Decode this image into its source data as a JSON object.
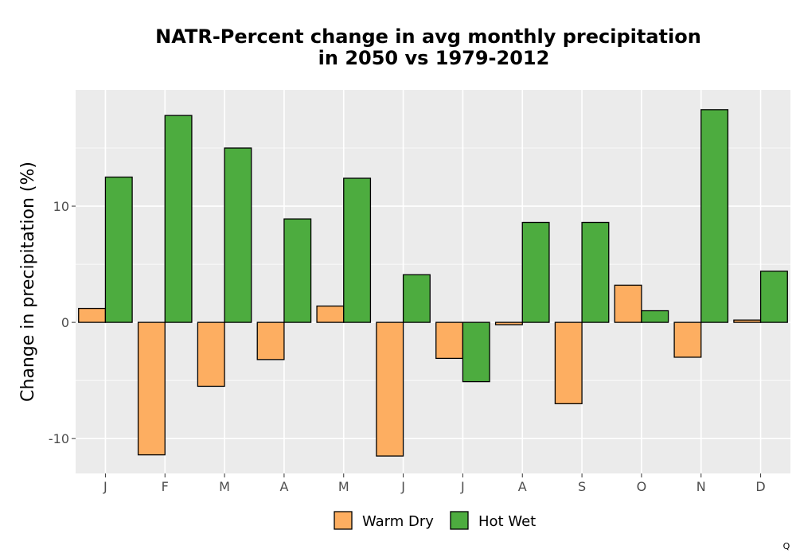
{
  "chart_data": {
    "type": "bar",
    "title_line1": "NATR-Percent change in avg monthly precipitation",
    "title_line2": "in 2050 vs 1979-2012",
    "xlabel": "",
    "ylabel": "Change in precipitation (%)",
    "categories": [
      "J",
      "F",
      "M",
      "A",
      "M",
      "J",
      "J",
      "A",
      "S",
      "O",
      "N",
      "D"
    ],
    "ylim": [
      -13,
      20
    ],
    "yticks": [
      -10,
      0,
      10
    ],
    "ytick_labels": [
      "-10",
      "0",
      "10"
    ],
    "grid": true,
    "legend_position": "bottom",
    "series": [
      {
        "name": "Warm Dry",
        "color": "#FDAE61",
        "values": [
          1.2,
          -11.4,
          -5.5,
          -3.2,
          1.4,
          -11.5,
          -3.1,
          -0.2,
          -7.0,
          3.2,
          -3.0,
          0.2
        ]
      },
      {
        "name": "Hot Wet",
        "color": "#4DAC3F",
        "values": [
          12.5,
          17.8,
          15.0,
          8.9,
          12.4,
          4.1,
          -5.1,
          8.6,
          8.6,
          1.0,
          18.3,
          4.4
        ]
      }
    ]
  },
  "corner_mark": "Q"
}
